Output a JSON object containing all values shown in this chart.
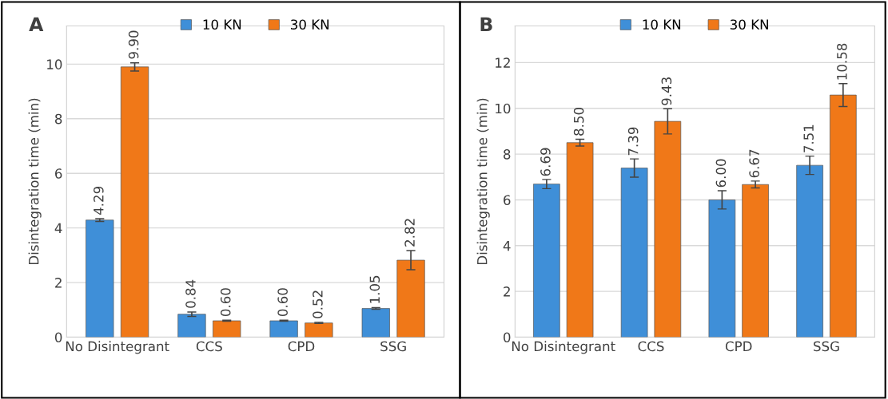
{
  "chart_data": [
    {
      "type": "bar",
      "ylabel": "Disintegration time (min)",
      "annotations": [
        "A"
      ],
      "categories": [
        "No Disintegrant",
        "CCS",
        "CPD",
        "SSG"
      ],
      "ylim": [
        0,
        11.4
      ],
      "yticks": [
        0,
        2,
        4,
        6,
        8,
        10
      ],
      "grid": "y",
      "legend": "top",
      "series": [
        {
          "name": "10 KN",
          "color": "#3f8fd8",
          "values": [
            4.29,
            0.84,
            0.6,
            1.05
          ],
          "errors": [
            0.05,
            0.08,
            0.02,
            0.03
          ],
          "value_labels": [
            "4.29",
            "0.84",
            "0.60",
            "1.05"
          ]
        },
        {
          "name": "30 KN",
          "color": "#f07818",
          "values": [
            9.9,
            0.6,
            0.52,
            2.82
          ],
          "errors": [
            0.15,
            0.02,
            0.02,
            0.35
          ],
          "value_labels": [
            "9.90",
            "0.60",
            "0.52",
            "2.82"
          ]
        }
      ]
    },
    {
      "type": "bar",
      "ylabel": "Disintegration time (min)",
      "annotations": [
        "B"
      ],
      "categories": [
        "No Disintegrant",
        "CCS",
        "CPD",
        "SSG"
      ],
      "ylim": [
        0,
        13.6
      ],
      "yticks": [
        0,
        2,
        4,
        6,
        8,
        10,
        12
      ],
      "grid": "y",
      "legend": "top",
      "series": [
        {
          "name": "10 KN",
          "color": "#3f8fd8",
          "values": [
            6.69,
            7.39,
            6.0,
            7.51
          ],
          "errors": [
            0.2,
            0.4,
            0.4,
            0.4
          ],
          "value_labels": [
            "6.69",
            "7.39",
            "6.00",
            "7.51"
          ]
        },
        {
          "name": "30 KN",
          "color": "#f07818",
          "values": [
            8.5,
            9.43,
            6.67,
            10.58
          ],
          "errors": [
            0.15,
            0.55,
            0.15,
            0.5
          ],
          "value_labels": [
            "8.50",
            "9.43",
            "6.67",
            "10.58"
          ]
        }
      ]
    }
  ]
}
